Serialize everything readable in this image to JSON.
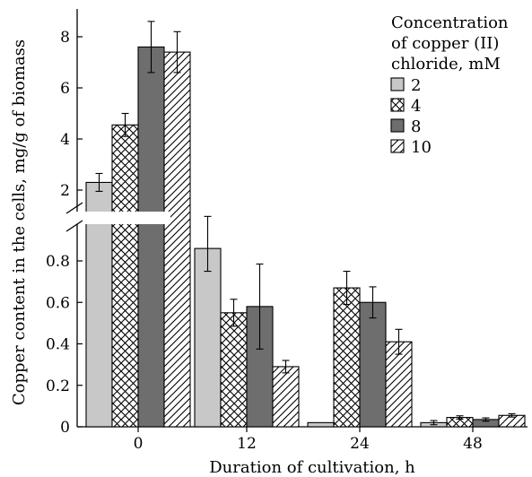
{
  "chart_data": {
    "type": "bar",
    "xlabel": "Duration of cultivation, h",
    "ylabel": "Copper content in the cells, mg/g of biomass",
    "categories": [
      "0",
      "12",
      "24",
      "48"
    ],
    "legend": {
      "title_lines": [
        "Concentration",
        "of copper (II)",
        "chloride, mM"
      ],
      "placement": "top-right"
    },
    "axis_break": true,
    "y_lower": {
      "range": [
        0,
        0.95
      ],
      "ticks": [
        0,
        0.2,
        0.4,
        0.6,
        0.8
      ],
      "tick_labels": [
        "0",
        "0.2",
        "0.4",
        "0.6",
        "0.8"
      ]
    },
    "y_upper": {
      "range": [
        1.2,
        9.0
      ],
      "ticks": [
        2,
        4,
        6,
        8
      ],
      "tick_labels": [
        "2",
        "4",
        "6",
        "8"
      ]
    },
    "series": [
      {
        "name": "2",
        "fill": "light-gray",
        "values": [
          2.3,
          0.86,
          0.02,
          0.02
        ],
        "errors": [
          0.35,
          0.11,
          0,
          0.01
        ]
      },
      {
        "name": "4",
        "fill": "cross-hatch",
        "values": [
          4.55,
          0.55,
          0.67,
          0.045
        ],
        "errors": [
          0.45,
          0.065,
          0.08,
          0.008
        ]
      },
      {
        "name": "8",
        "fill": "dark-gray",
        "values": [
          7.6,
          0.58,
          0.6,
          0.035
        ],
        "errors": [
          1.0,
          0.205,
          0.075,
          0.008
        ]
      },
      {
        "name": "10",
        "fill": "diagonal-hatch",
        "values": [
          7.4,
          0.29,
          0.41,
          0.055
        ],
        "errors": [
          0.8,
          0.03,
          0.06,
          0.008
        ]
      }
    ],
    "grid": false
  }
}
